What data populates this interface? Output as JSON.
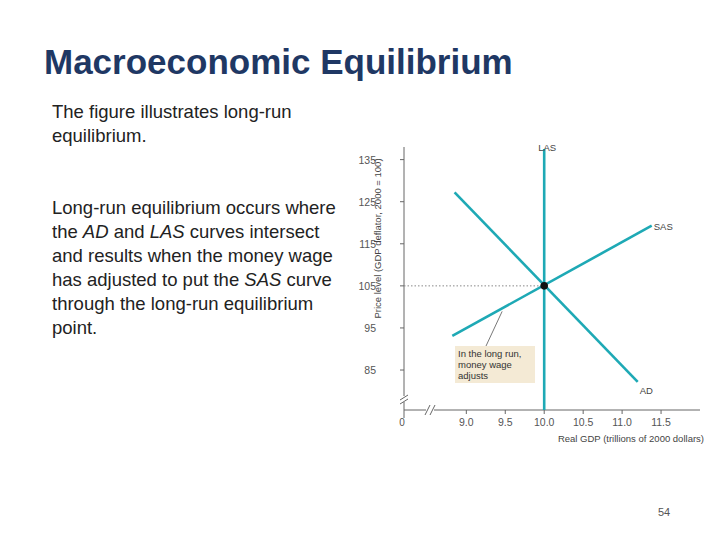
{
  "slide": {
    "title": "Macroeconomic Equilibrium",
    "paragraphs": [
      "The figure illustrates long-run equilibrium.",
      "Long-run equilibrium occurs where the AD and LAS curves intersect and results when the money wage has adjusted to put the SAS curve through the long-run equilibrium point."
    ],
    "page_number": "54"
  },
  "chart_data": {
    "type": "line",
    "x_label": "Real GDP (trillions of 2000 dollars)",
    "y_label": "Price level (GDP deflator, 2000 = 100)",
    "xlim": [
      8.2,
      12.0
    ],
    "ylim": [
      75.5,
      138
    ],
    "xticks": [
      {
        "value": 9,
        "label": "9.0"
      },
      9.5,
      {
        "value": 10,
        "label": "10.0"
      },
      10.5,
      {
        "value": 11,
        "label": "11.0"
      },
      11.5
    ],
    "yticks": [
      85,
      95,
      105,
      115,
      125,
      135
    ],
    "origin_label": "0",
    "grid": false,
    "series": [
      {
        "name": "LAS",
        "color": "#1ea9b5",
        "x": [
          10,
          10
        ],
        "values": [
          75.5,
          137.5
        ]
      },
      {
        "name": "SAS",
        "color": "#1ea9b5",
        "x": [
          8.82,
          11.38
        ],
        "values": [
          93.1,
          119.3
        ]
      },
      {
        "name": "AD",
        "color": "#1ea9b5",
        "x": [
          8.85,
          11.2
        ],
        "values": [
          127.2,
          82.2
        ]
      }
    ],
    "equilibrium": {
      "x": 10,
      "y": 105
    },
    "annotation": "In the long run, money wage adjusts"
  }
}
